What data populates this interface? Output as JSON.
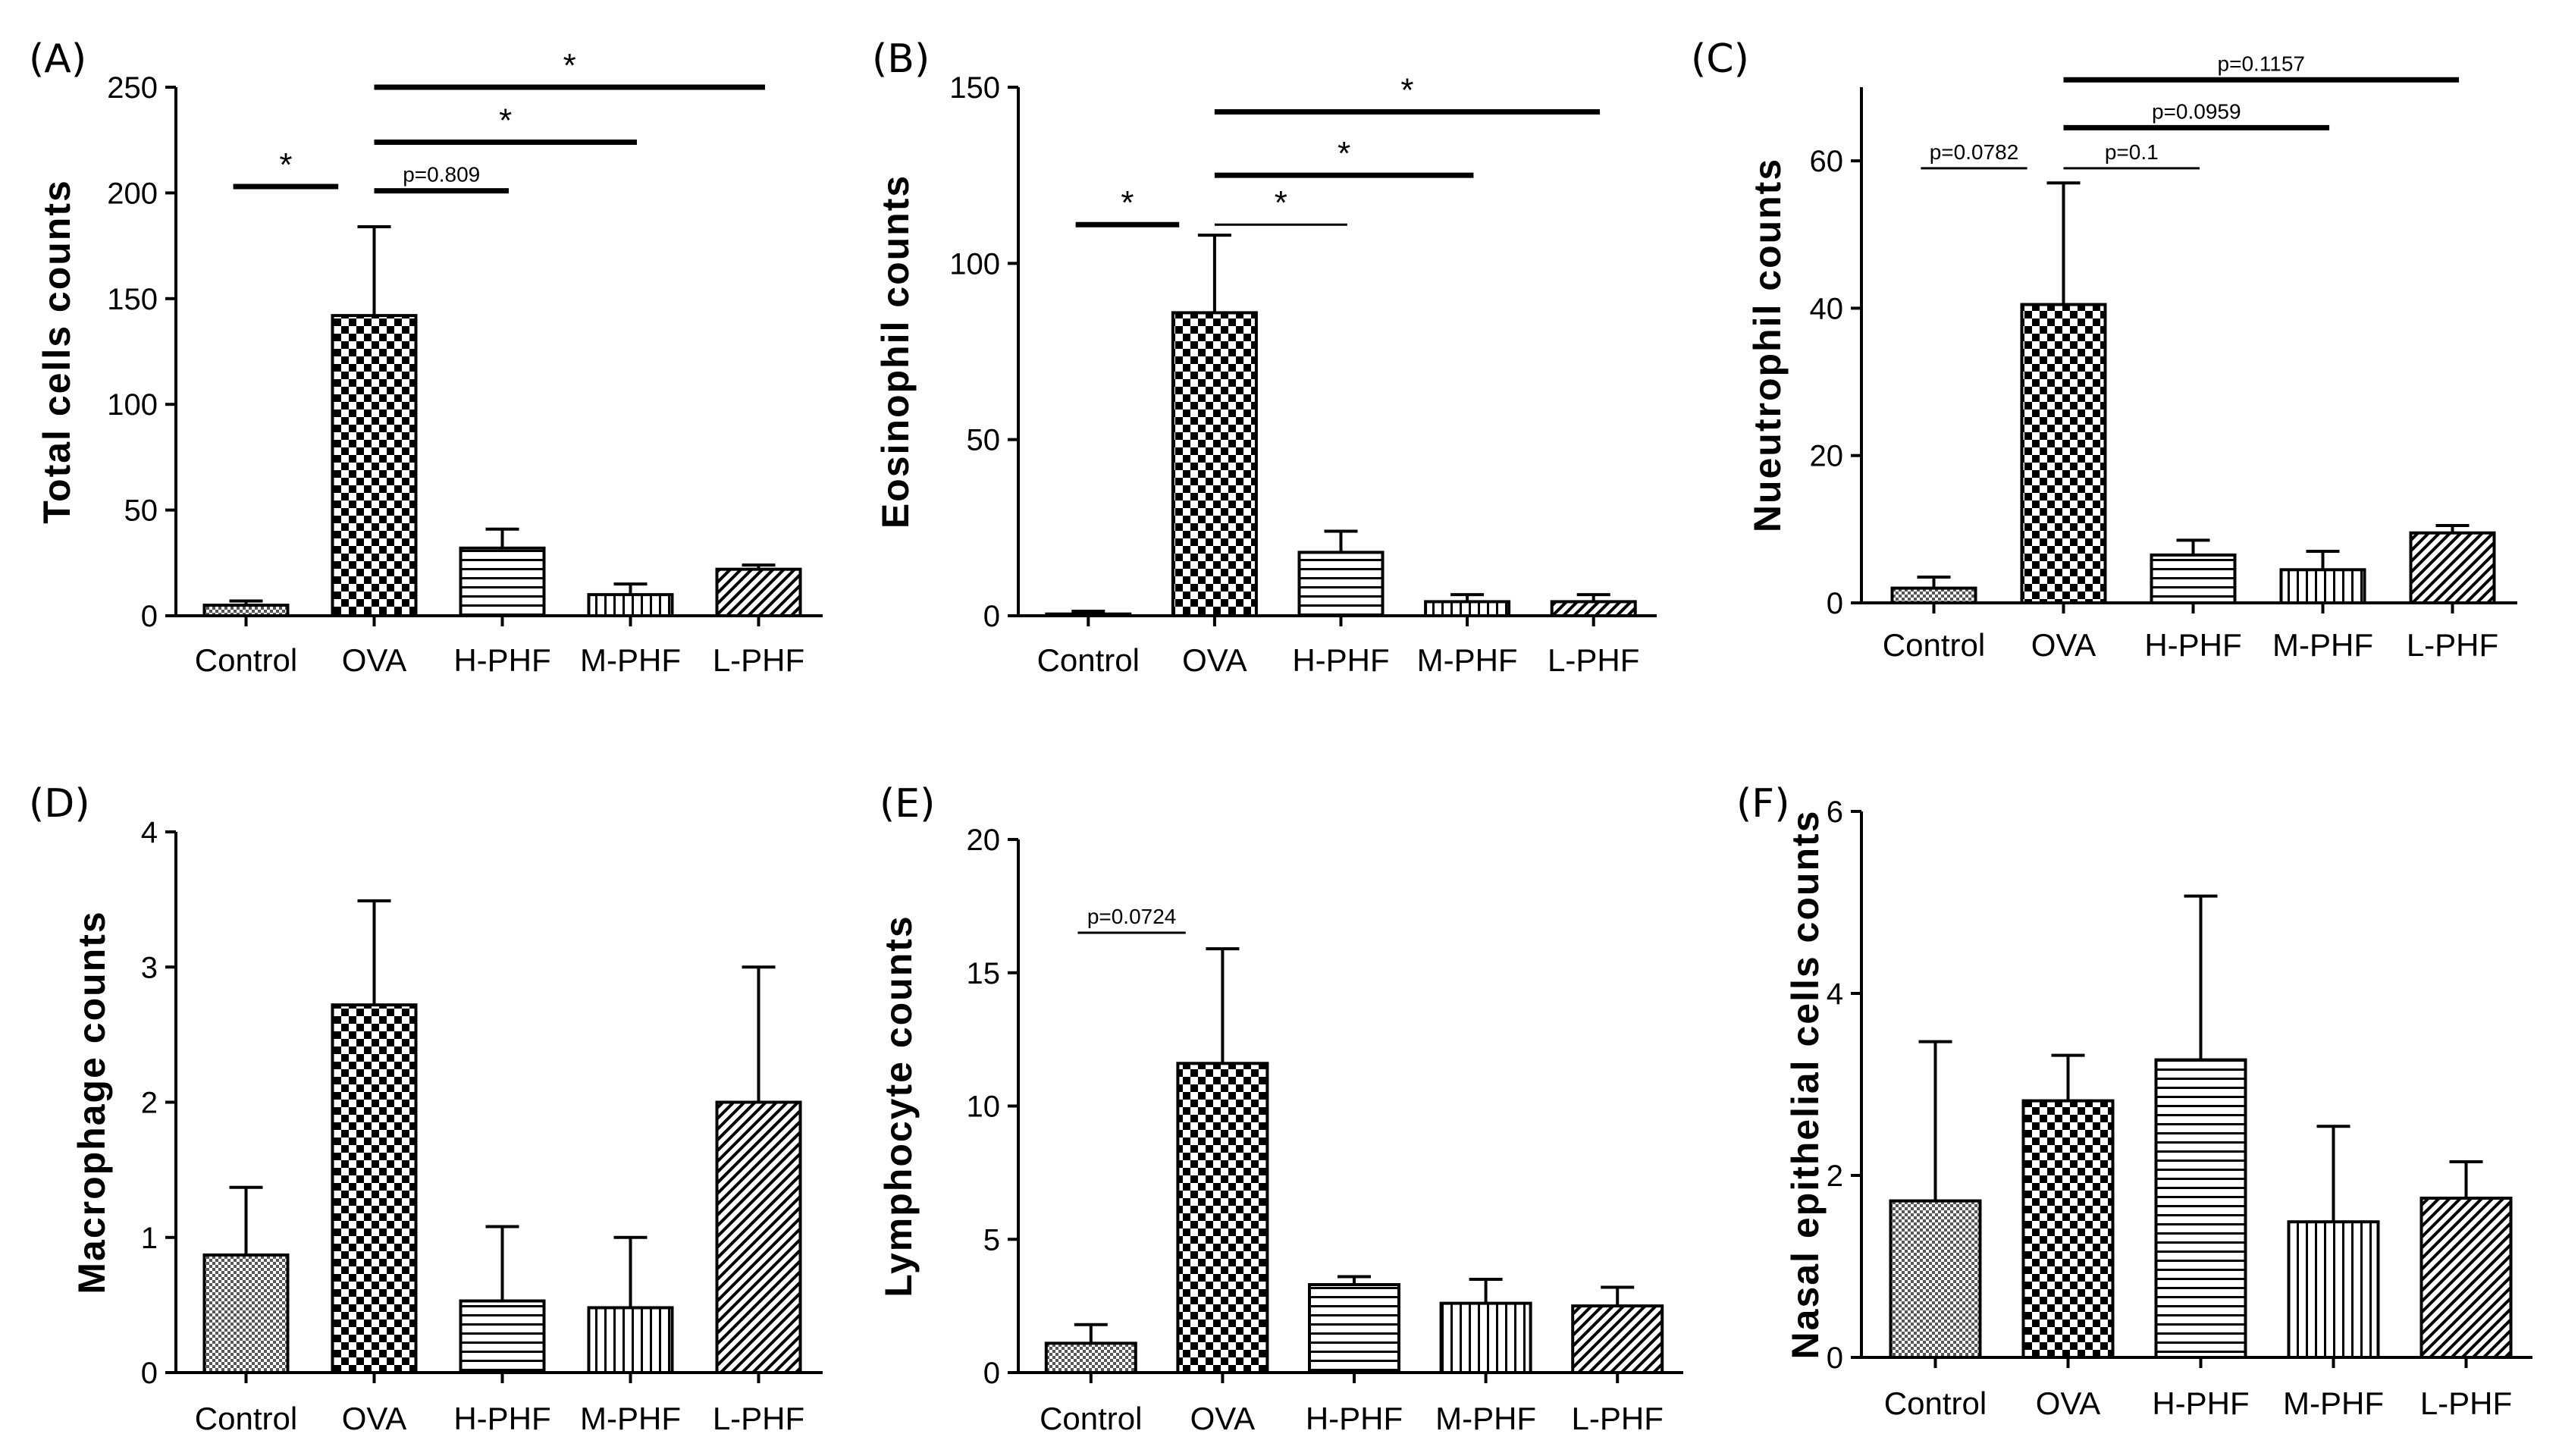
{
  "chart_data": [
    {
      "type": "bar",
      "panel": "(A)",
      "ylabel": "Total cells counts",
      "ylim": [
        0,
        250
      ],
      "yticks": [
        0,
        50,
        100,
        150,
        200,
        250
      ],
      "categories": [
        "Control",
        "OVA",
        "H-PHF",
        "M-PHF",
        "L-PHF"
      ],
      "values": [
        5,
        142,
        32,
        10,
        22
      ],
      "errors": [
        2,
        42,
        9,
        5,
        2
      ],
      "annotations": [
        {
          "from": 0,
          "to": 1,
          "label": "*",
          "value": 203,
          "thick": true
        },
        {
          "from": 1,
          "to": 4,
          "label": "*",
          "value": 250,
          "thick": true
        },
        {
          "from": 1,
          "to": 3,
          "label": "*",
          "value": 224,
          "thick": true
        },
        {
          "from": 1,
          "to": 2,
          "label": "p=0.809",
          "value": 201,
          "thick": true
        }
      ]
    },
    {
      "type": "bar",
      "panel": "(B)",
      "ylabel": "Eosinophil counts",
      "ylim": [
        0,
        150
      ],
      "yticks": [
        0,
        50,
        100,
        150
      ],
      "categories": [
        "Control",
        "OVA",
        "H-PHF",
        "M-PHF",
        "L-PHF"
      ],
      "values": [
        0.5,
        86,
        18,
        4,
        4
      ],
      "errors": [
        0.8,
        22,
        6,
        2,
        2
      ],
      "annotations": [
        {
          "from": 0,
          "to": 1,
          "label": "*",
          "value": 111,
          "thick": true
        },
        {
          "from": 1,
          "to": 4,
          "label": "*",
          "value": 143,
          "thick": true
        },
        {
          "from": 1,
          "to": 3,
          "label": "*",
          "value": 125,
          "thick": true
        },
        {
          "from": 1,
          "to": 2,
          "label": "*",
          "value": 111,
          "thick": false
        }
      ]
    },
    {
      "type": "bar",
      "panel": "(C)",
      "ylabel": "Nueutrophil counts",
      "ylim": [
        0,
        70
      ],
      "yticks": [
        0,
        20,
        40,
        60
      ],
      "categories": [
        "Control",
        "OVA",
        "H-PHF",
        "M-PHF",
        "L-PHF"
      ],
      "values": [
        2,
        40.5,
        6.5,
        4.5,
        9.5
      ],
      "errors": [
        1.5,
        16.5,
        2,
        2.5,
        1
      ],
      "annotations": [
        {
          "from": 0,
          "to": 1,
          "label": "p=0.0782",
          "value": 59,
          "thick": false
        },
        {
          "from": 1,
          "to": 4,
          "label": "p=0.1157",
          "value": 71,
          "thick": true
        },
        {
          "from": 1,
          "to": 3,
          "label": "p=0.0959",
          "value": 64.5,
          "thick": true
        },
        {
          "from": 1,
          "to": 2,
          "label": "p=0.1",
          "value": 59,
          "thick": false
        }
      ]
    },
    {
      "type": "bar",
      "panel": "(D)",
      "ylabel": "Macrophage counts",
      "ylim": [
        0,
        4
      ],
      "yticks": [
        0,
        1,
        2,
        3,
        4
      ],
      "categories": [
        "Control",
        "OVA",
        "H-PHF",
        "M-PHF",
        "L-PHF"
      ],
      "values": [
        0.87,
        2.72,
        0.53,
        0.48,
        2.0
      ],
      "errors": [
        0.5,
        0.77,
        0.55,
        0.52,
        1.0
      ],
      "annotations": []
    },
    {
      "type": "bar",
      "panel": "(E)",
      "ylabel": "Lymphocyte counts",
      "ylim": [
        0,
        20
      ],
      "yticks": [
        0,
        5,
        10,
        15,
        20
      ],
      "categories": [
        "Control",
        "OVA",
        "H-PHF",
        "M-PHF",
        "L-PHF"
      ],
      "values": [
        1.1,
        11.6,
        3.3,
        2.6,
        2.5
      ],
      "errors": [
        0.7,
        4.3,
        0.3,
        0.9,
        0.7
      ],
      "annotations": [
        {
          "from": 0,
          "to": 1,
          "label": "p=0.0724",
          "value": 16.5,
          "thick": false
        }
      ]
    },
    {
      "type": "bar",
      "panel": "(F)",
      "ylabel": "Nasal epithelial cells counts",
      "ylim": [
        0,
        6
      ],
      "yticks": [
        0,
        2,
        4,
        6
      ],
      "categories": [
        "Control",
        "OVA",
        "H-PHF",
        "M-PHF",
        "L-PHF"
      ],
      "values": [
        1.72,
        2.82,
        3.27,
        1.49,
        1.75
      ],
      "errors": [
        1.75,
        0.5,
        1.8,
        1.05,
        0.4
      ],
      "annotations": []
    }
  ]
}
